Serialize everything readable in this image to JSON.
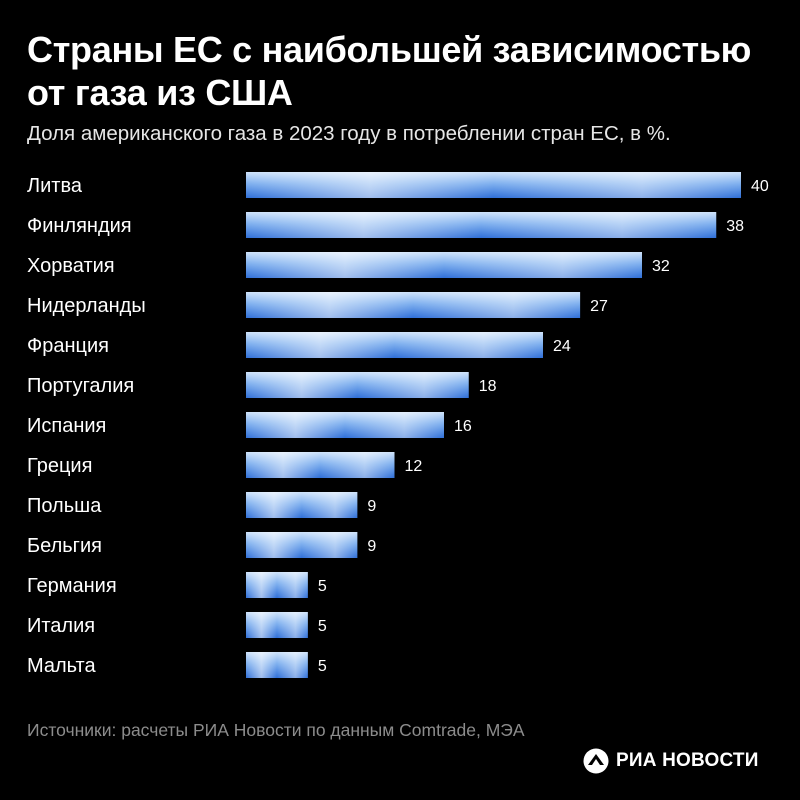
{
  "header": {
    "title": "Страны ЕС с наибольшей зависимостью от газа из США",
    "subtitle": "Доля американского газа в 2023 году в потреблении стран ЕС, в %."
  },
  "chart_data": {
    "type": "bar",
    "orientation": "horizontal",
    "title": "Страны ЕС с наибольшей зависимостью от газа из США",
    "subtitle": "Доля американского газа в 2023 году в потреблении стран ЕС, в %.",
    "xlabel": "",
    "ylabel": "",
    "categories": [
      "Литва",
      "Финляндия",
      "Хорватия",
      "Нидерланды",
      "Франция",
      "Португалия",
      "Испания",
      "Греция",
      "Польша",
      "Бельгия",
      "Германия",
      "Италия",
      "Мальта"
    ],
    "values": [
      40,
      38,
      32,
      27,
      24,
      18,
      16,
      12,
      9,
      9,
      5,
      5,
      5
    ],
    "data_labels": true,
    "grid": false,
    "legend": false,
    "bar_colors": [
      "#2f6fd8",
      "#8fbcf5",
      "#ffffff"
    ]
  },
  "footer": {
    "source": "Источники: расчеты РИА Новости по данным Comtrade, МЭА",
    "logo_text": "РИА НОВОСТИ",
    "logo_icon": "ria-novosti-logo-icon"
  },
  "colors": {
    "background": "#000000",
    "text": "#ffffff",
    "source_text": "#8c8c8c"
  }
}
